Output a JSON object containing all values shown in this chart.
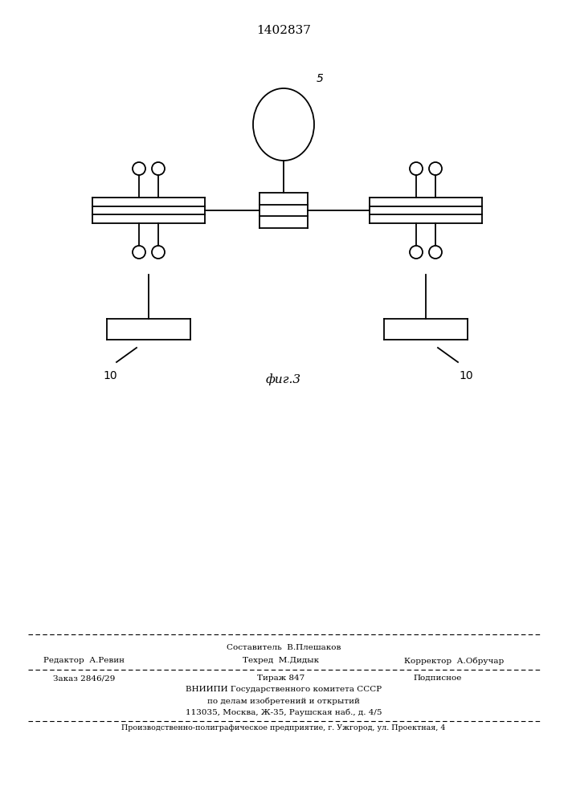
{
  "title": "1402837",
  "fig_label": "фиг.3",
  "background_color": "#ffffff",
  "line_color": "#000000",
  "label_5": "5",
  "label_10_left": "10",
  "label_10_right": "10",
  "page_width": 7.07,
  "page_height": 10.0,
  "dpi": 100,
  "footer_line1": "Составитель  В.Плешаков",
  "footer_line2_left": "Редактор  А.Ревин",
  "footer_line2_mid": "Техред  М.Дидык",
  "footer_line2_right": "Корректор  А.Обручар",
  "footer_line3_left": "Заказ 2846/29",
  "footer_line3_mid": "Тираж 847",
  "footer_line3_right": "Подписное",
  "footer_line4": "ВНИИПИ Государственного комитета СССР",
  "footer_line5": "по делам изобретений и открытий",
  "footer_line6": "113035, Москва, Ж-35, Раушская наб., д. 4/5",
  "footer_line7": "Производственно-полиграфическое предприятие, г. Ужгород, ул. Проектная, 4"
}
